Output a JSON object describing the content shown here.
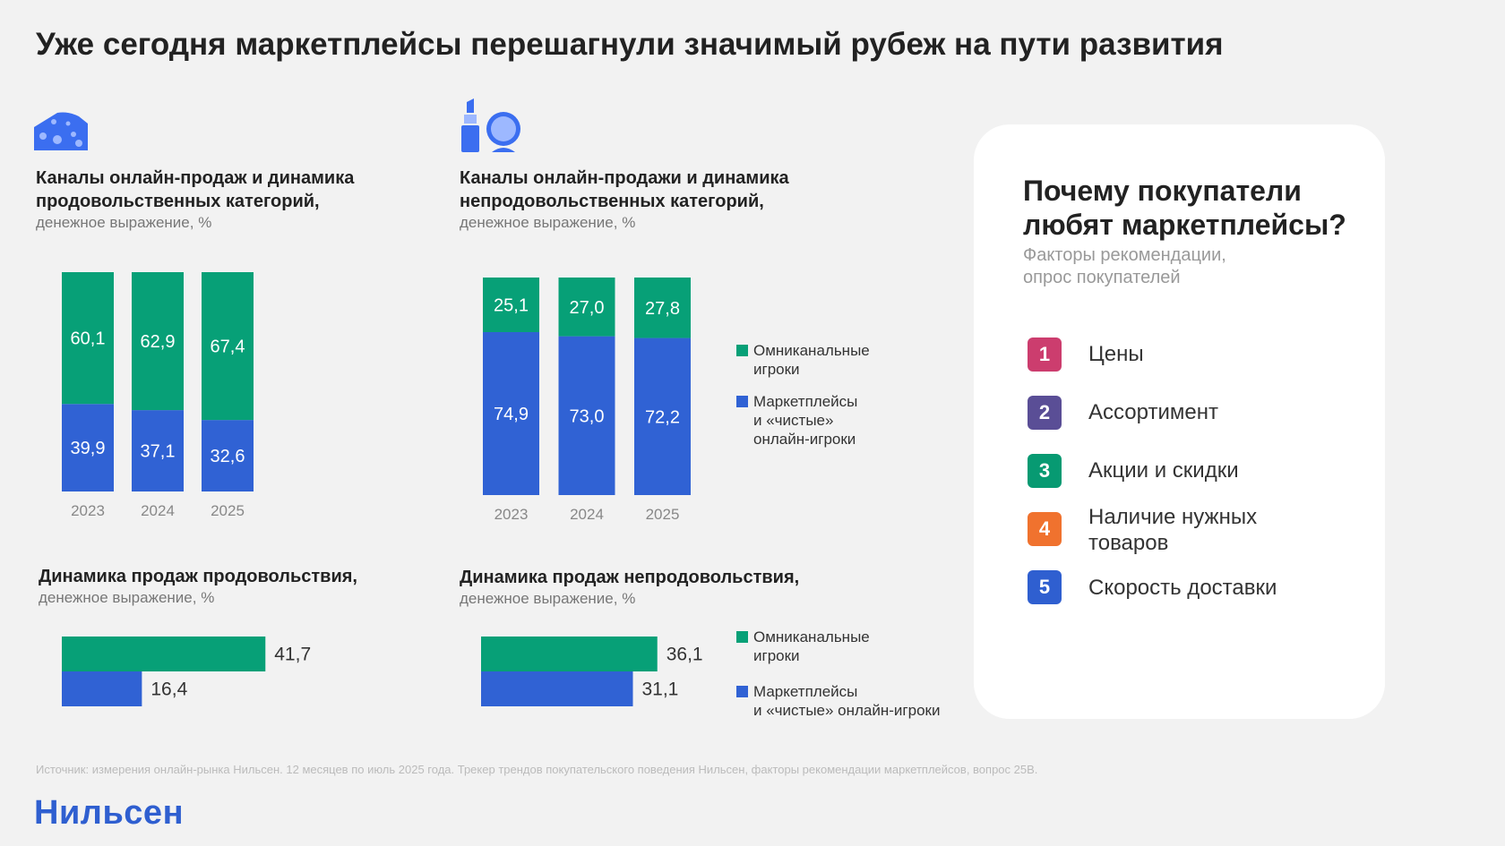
{
  "title": "Уже сегодня маркетплейсы перешагнули значимый рубеж на пути развития",
  "colors": {
    "green": "#07a077",
    "blue": "#3062d4",
    "text": "#222222",
    "muted": "#777777"
  },
  "food_icon": "cheese-icon",
  "nonfood_icon": "lipstick-mirror-icon",
  "food_channels": {
    "title_line1": "Каналы онлайн-продаж и динамика",
    "title_line2": "продовольственных категорий,",
    "subtitle": "денежное выражение, %"
  },
  "nonfood_channels": {
    "title_line1": "Каналы онлайн-продажи и динамика",
    "title_line2": "непродовольственных категорий,",
    "subtitle": "денежное выражение, %"
  },
  "food_dynamics": {
    "title": "Динамика продаж продовольствия,",
    "subtitle": "денежное выражение, %"
  },
  "nonfood_dynamics": {
    "title": "Динамика продаж непродовольствия,",
    "subtitle": "денежное выражение, %"
  },
  "legend_top": {
    "omni_line1": "Омниканальные",
    "omni_line2": "игроки",
    "mp_line1": "Маркетплейсы",
    "mp_line2": "и «чистые»",
    "mp_line3": "онлайн-игроки"
  },
  "legend_bottom": {
    "omni_line1": "Омниканальные",
    "omni_line2": "игроки",
    "mp_line1": "Маркетплейсы",
    "mp_line2": "и «чистые» онлайн-игроки"
  },
  "chart_data": [
    {
      "type": "bar",
      "stacked": true,
      "categories": [
        "2023",
        "2024",
        "2025"
      ],
      "series": [
        {
          "name": "Маркетплейсы и «чистые» онлайн-игроки",
          "color": "#3062d4",
          "values": [
            39.9,
            37.1,
            32.6
          ],
          "labels": [
            "39,9",
            "37,1",
            "32,6"
          ]
        },
        {
          "name": "Омниканальные игроки",
          "color": "#07a077",
          "values": [
            60.1,
            62.9,
            67.4
          ],
          "labels": [
            "60,1",
            "62,9",
            "67,4"
          ]
        }
      ],
      "ylim": [
        0,
        100
      ]
    },
    {
      "type": "bar",
      "stacked": true,
      "categories": [
        "2023",
        "2024",
        "2025"
      ],
      "series": [
        {
          "name": "Маркетплейсы и «чистые» онлайн-игроки",
          "color": "#3062d4",
          "values": [
            74.9,
            73.0,
            72.2
          ],
          "labels": [
            "74,9",
            "73,0",
            "72,2"
          ]
        },
        {
          "name": "Омниканальные игроки",
          "color": "#07a077",
          "values": [
            25.1,
            27.0,
            27.8
          ],
          "labels": [
            "25,1",
            "27,0",
            "27,8"
          ]
        }
      ],
      "ylim": [
        0,
        100
      ]
    },
    {
      "type": "bar",
      "orientation": "horizontal",
      "series": [
        {
          "name": "Омниканальные игроки",
          "color": "#07a077",
          "values": [
            41.7
          ],
          "labels": [
            "41,7"
          ]
        },
        {
          "name": "Маркетплейсы и «чистые» онлайн-игроки",
          "color": "#3062d4",
          "values": [
            16.4
          ],
          "labels": [
            "16,4"
          ]
        }
      ]
    },
    {
      "type": "bar",
      "orientation": "horizontal",
      "series": [
        {
          "name": "Омниканальные игроки",
          "color": "#07a077",
          "values": [
            36.1
          ],
          "labels": [
            "36,1"
          ]
        },
        {
          "name": "Маркетплейсы и «чистые» онлайн-игроки",
          "color": "#3062d4",
          "values": [
            31.1
          ],
          "labels": [
            "31,1"
          ]
        }
      ]
    }
  ],
  "card": {
    "title_line1": "Почему покупатели",
    "title_line2": "любят маркетплейсы?",
    "sub_line1": "Факторы рекомендации,",
    "sub_line2": "опрос покупателей",
    "items": [
      {
        "rank": "1",
        "label": "Цены",
        "color": "#cc3d6e"
      },
      {
        "rank": "2",
        "label": "Ассортимент",
        "color": "#5a4e96"
      },
      {
        "rank": "3",
        "label": "Акции и скидки",
        "color": "#079a72"
      },
      {
        "rank": "4",
        "label_line1": "Наличие нужных",
        "label_line2": "товаров",
        "color": "#f0722e"
      },
      {
        "rank": "5",
        "label": "Скорость доставки",
        "color": "#2f5fd0"
      }
    ]
  },
  "source": "Источник: измерения онлайн-рынка Нильсен. 12 месяцев по июль 2025 года. Трекер трендов покупательского поведения Нильсен, факторы рекомендации маркетплейсов, вопрос 25B.",
  "logo": "Нильсен"
}
